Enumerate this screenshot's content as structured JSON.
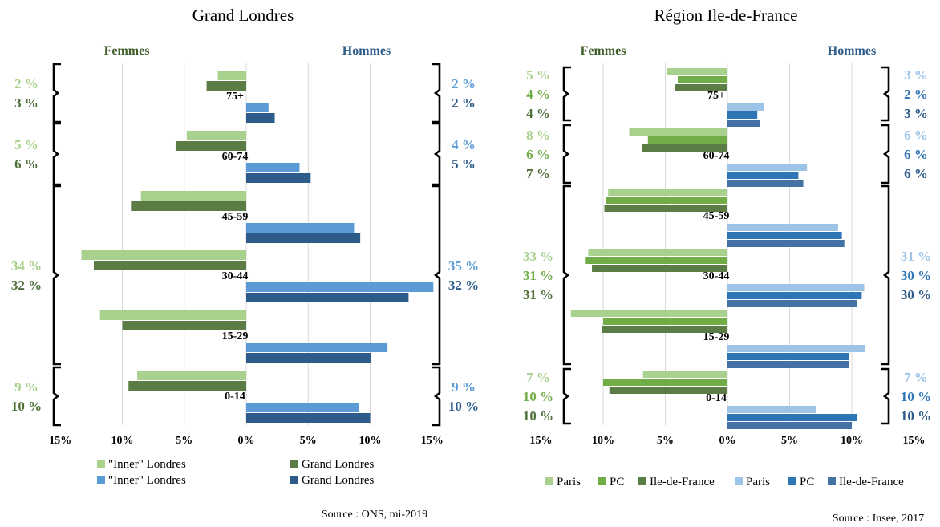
{
  "chart_data": [
    {
      "type": "bar",
      "title": "Grand Londres",
      "left_header": "Femmes",
      "right_header": "Hommes",
      "categories": [
        "75+",
        "60-74",
        "45-59",
        "30-44",
        "15-29",
        "0-14"
      ],
      "xlim": [
        -15,
        15
      ],
      "x_ticks": [
        "15%",
        "10%",
        "5%",
        "0%",
        "5%",
        "10%",
        "15%"
      ],
      "grid": true,
      "series": [
        {
          "name": "\"Inner\" Londres",
          "side": "Femmes",
          "color": "#a9d18e",
          "values": [
            2.3,
            4.8,
            8.5,
            13.3,
            11.8,
            8.8
          ]
        },
        {
          "name": "Grand Londres",
          "side": "Femmes",
          "color": "#5b7d45",
          "values": [
            3.2,
            5.7,
            9.3,
            12.3,
            10.0,
            9.5
          ]
        },
        {
          "name": "\"Inner\" Londres",
          "side": "Hommes",
          "color": "#5b9bd5",
          "values": [
            1.8,
            4.3,
            8.7,
            15.1,
            11.4,
            9.1
          ]
        },
        {
          "name": "Grand Londres",
          "side": "Hommes",
          "color": "#2e5c8a",
          "values": [
            2.3,
            5.2,
            9.2,
            13.1,
            10.1,
            10.0
          ]
        }
      ],
      "group_labels": {
        "Femmes": [
          {
            "values": [
              "2 %",
              "3 %"
            ],
            "colors": [
              "#a9d18e",
              "#4e6f38"
            ]
          },
          {
            "values": [
              "5 %",
              "6 %"
            ],
            "colors": [
              "#a9d18e",
              "#4e6f38"
            ]
          },
          {
            "values": [
              "34 %",
              "32 %"
            ],
            "colors": [
              "#a9d18e",
              "#4e6f38"
            ]
          },
          {
            "values": [
              "9 %",
              "10 %"
            ],
            "colors": [
              "#a9d18e",
              "#4e6f38"
            ]
          }
        ],
        "Hommes": [
          {
            "values": [
              "2 %",
              "2 %"
            ],
            "colors": [
              "#5b9bd5",
              "#2e5c8a"
            ]
          },
          {
            "values": [
              "4 %",
              "5 %"
            ],
            "colors": [
              "#5b9bd5",
              "#2e5c8a"
            ]
          },
          {
            "values": [
              "35 %",
              "32 %"
            ],
            "colors": [
              "#5b9bd5",
              "#2e5c8a"
            ]
          },
          {
            "values": [
              "9 %",
              "10 %"
            ],
            "colors": [
              "#5b9bd5",
              "#2e5c8a"
            ]
          }
        ]
      },
      "source": "Source : ONS, mi-2019"
    },
    {
      "type": "bar",
      "title": "Région Ile-de-France",
      "left_header": "Femmes",
      "right_header": "Hommes",
      "categories": [
        "75+",
        "60-74",
        "45-59",
        "30-44",
        "15-29",
        "0-14"
      ],
      "xlim": [
        -15,
        15
      ],
      "x_ticks": [
        "15%",
        "10%",
        "5%",
        "0%",
        "5%",
        "10%",
        "15%"
      ],
      "grid": true,
      "series": [
        {
          "name": "Paris",
          "side": "Femmes",
          "color": "#a9d18e",
          "values": [
            4.9,
            7.9,
            9.6,
            11.2,
            12.6,
            6.8
          ]
        },
        {
          "name": "PC",
          "side": "Femmes",
          "color": "#70ad47",
          "values": [
            4.0,
            6.4,
            9.8,
            11.4,
            10.0,
            10.0
          ]
        },
        {
          "name": "Ile-de-France",
          "side": "Femmes",
          "color": "#5b7d45",
          "values": [
            4.2,
            6.9,
            9.9,
            10.9,
            10.1,
            9.5
          ]
        },
        {
          "name": "Paris",
          "side": "Hommes",
          "color": "#9dc3e6",
          "values": [
            2.9,
            6.4,
            8.9,
            11.0,
            11.1,
            7.1
          ]
        },
        {
          "name": "PC",
          "side": "Hommes",
          "color": "#2e75b6",
          "values": [
            2.4,
            5.7,
            9.2,
            10.8,
            9.8,
            10.4
          ]
        },
        {
          "name": "Ile-de-France",
          "side": "Hommes",
          "color": "#4472a4",
          "values": [
            2.6,
            6.1,
            9.4,
            10.4,
            9.8,
            10.0
          ]
        }
      ],
      "group_labels": {
        "Femmes": [
          {
            "values": [
              "5 %",
              "4 %",
              "4 %"
            ],
            "colors": [
              "#a9d18e",
              "#70ad47",
              "#4e6f38"
            ]
          },
          {
            "values": [
              "8 %",
              "6 %",
              "7 %"
            ],
            "colors": [
              "#a9d18e",
              "#70ad47",
              "#4e6f38"
            ]
          },
          {
            "values": [
              "33 %",
              "31 %",
              "31 %"
            ],
            "colors": [
              "#a9d18e",
              "#70ad47",
              "#4e6f38"
            ]
          },
          {
            "values": [
              "7 %",
              "10 %",
              "10 %"
            ],
            "colors": [
              "#a9d18e",
              "#70ad47",
              "#4e6f38"
            ]
          }
        ],
        "Hommes": [
          {
            "values": [
              "3 %",
              "2 %",
              "3 %"
            ],
            "colors": [
              "#9dc3e6",
              "#2e75b6",
              "#2e5c8a"
            ]
          },
          {
            "values": [
              "6 %",
              "6 %",
              "6 %"
            ],
            "colors": [
              "#9dc3e6",
              "#2e75b6",
              "#2e5c8a"
            ]
          },
          {
            "values": [
              "31 %",
              "30 %",
              "30 %"
            ],
            "colors": [
              "#9dc3e6",
              "#2e75b6",
              "#2e5c8a"
            ]
          },
          {
            "values": [
              "7 %",
              "10 %",
              "10 %"
            ],
            "colors": [
              "#9dc3e6",
              "#2e75b6",
              "#2e5c8a"
            ]
          }
        ]
      },
      "source": "Source : Insee, 2017"
    }
  ]
}
